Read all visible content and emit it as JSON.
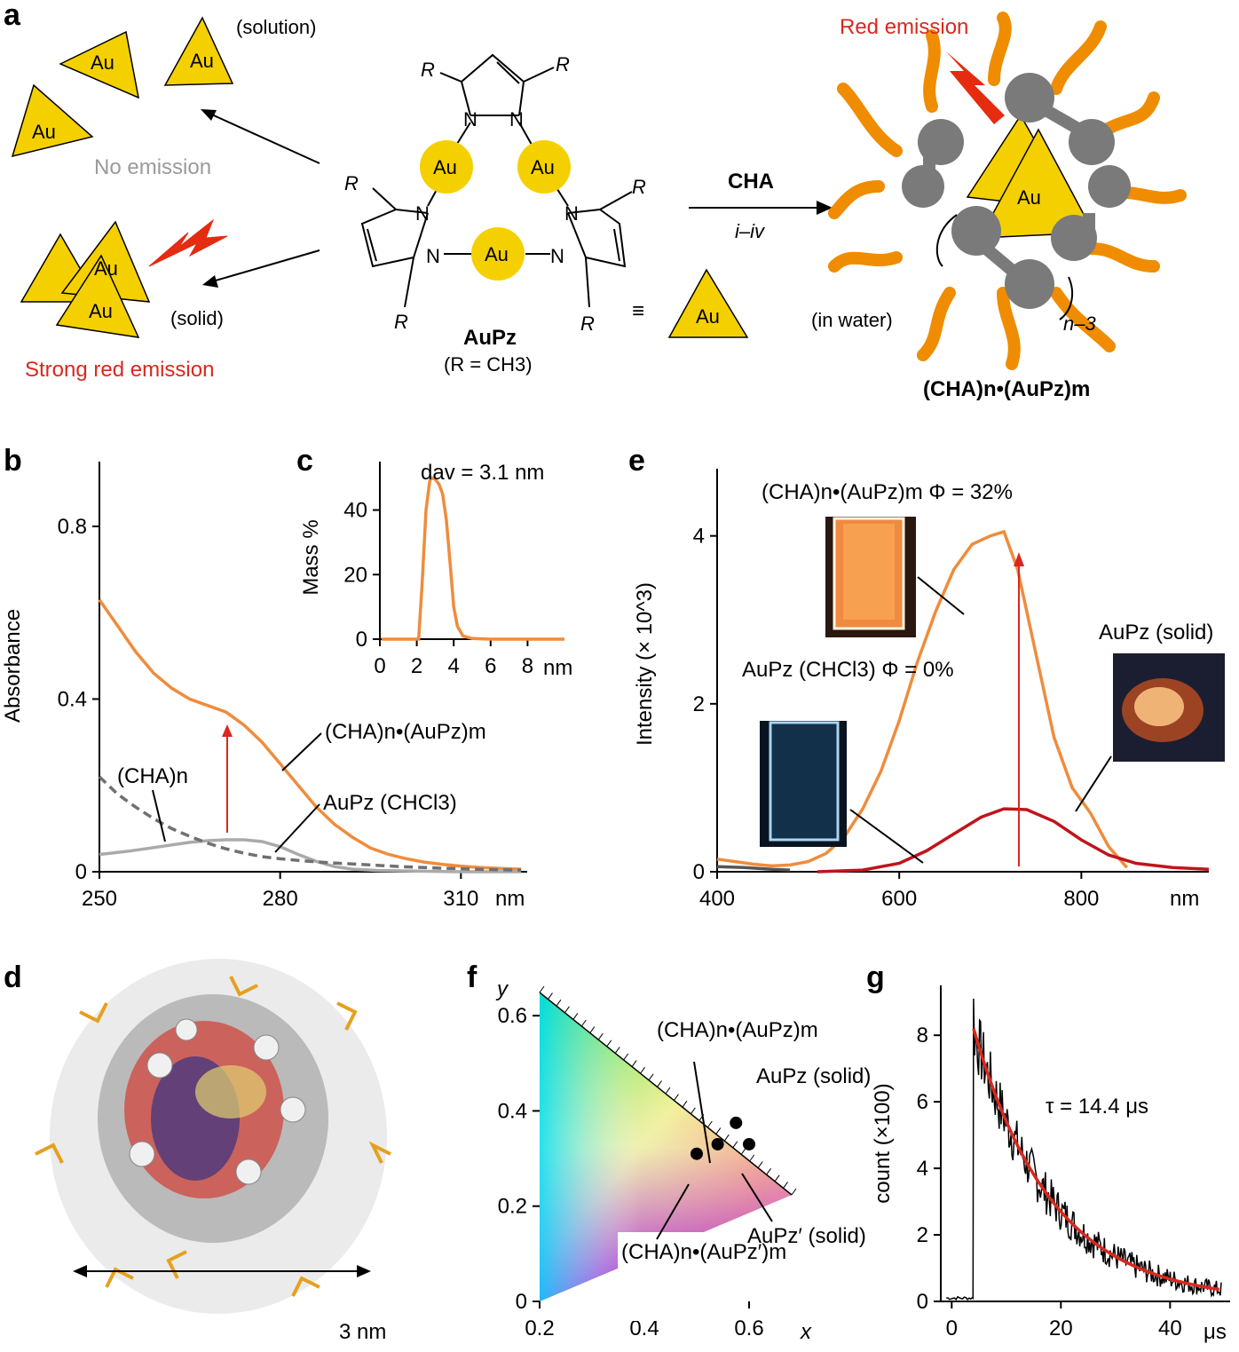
{
  "panel_labels": [
    "a",
    "b",
    "c",
    "d",
    "e",
    "f",
    "g"
  ],
  "panel_a": {
    "au": "Au",
    "solution": "(solution)",
    "solid": "(solid)",
    "in_water": "(in water)",
    "no_emission": "No emission",
    "strong_red_emission": "Strong red emission",
    "red_emission": "Red emission",
    "R": "R",
    "N": "N",
    "compound": "AuPz",
    "compound_def": "(R = CH3)",
    "reagent": "CHA",
    "steps": "i–iv",
    "equiv": "≡",
    "n_minus_3": "n–3",
    "product": "(CHA)n•(AuPz)m",
    "colors": {
      "gold": "#f5d000",
      "orange": "#ef8c00",
      "gray": "#7a7a7a",
      "red": "#d9281e"
    }
  },
  "chart_data": [
    {
      "panel": "b",
      "type": "line",
      "ylabel": "Absorbance",
      "xunit": "nm",
      "xlim": [
        250,
        321
      ],
      "ylim": [
        0,
        0.95
      ],
      "xticks": [
        250,
        280,
        310
      ],
      "yticks": [
        0,
        0.4,
        0.8
      ],
      "annotations": [
        "(CHA)n•(AuPz)m",
        "(CHA)n",
        "AuPz (CHCl3)"
      ],
      "series": [
        {
          "name": "(CHA)n•(AuPz)m",
          "color": "#ef8c3c",
          "style": "solid",
          "x": [
            250,
            253,
            256,
            259,
            262,
            265,
            268,
            271,
            274,
            277,
            280,
            283,
            286,
            289,
            292,
            295,
            298,
            301,
            304,
            307,
            310,
            313,
            316,
            320
          ],
          "y": [
            0.63,
            0.57,
            0.51,
            0.46,
            0.425,
            0.4,
            0.385,
            0.37,
            0.34,
            0.3,
            0.25,
            0.2,
            0.15,
            0.11,
            0.08,
            0.055,
            0.04,
            0.03,
            0.022,
            0.017,
            0.013,
            0.01,
            0.008,
            0.006
          ]
        },
        {
          "name": "(CHA)n",
          "color": "#aaaaaa",
          "style": "solid",
          "x": [
            250,
            255,
            260,
            265,
            268,
            271,
            274,
            277,
            280,
            283,
            286,
            289,
            292,
            296,
            300,
            305,
            310,
            320
          ],
          "y": [
            0.04,
            0.048,
            0.058,
            0.068,
            0.072,
            0.074,
            0.074,
            0.07,
            0.058,
            0.04,
            0.024,
            0.012,
            0.006,
            0.003,
            0.002,
            0.001,
            0.0,
            0.0
          ]
        },
        {
          "name": "AuPz (CHCl3)",
          "color": "#707070",
          "style": "dashed",
          "x": [
            250,
            253,
            256,
            259,
            262,
            265,
            268,
            271,
            274,
            277,
            280,
            284,
            288,
            292,
            296,
            300,
            305,
            310,
            315,
            320
          ],
          "y": [
            0.22,
            0.18,
            0.15,
            0.123,
            0.1,
            0.082,
            0.066,
            0.053,
            0.043,
            0.035,
            0.03,
            0.025,
            0.021,
            0.018,
            0.015,
            0.012,
            0.009,
            0.007,
            0.005,
            0.004
          ]
        }
      ]
    },
    {
      "panel": "c",
      "type": "line",
      "ylabel": "Mass %",
      "title": "dav = 3.1 nm",
      "xunit": "nm",
      "xlim": [
        0,
        10
      ],
      "ylim": [
        0,
        55
      ],
      "xticks": [
        0,
        2,
        4,
        6,
        8
      ],
      "yticks": [
        0,
        20,
        40
      ],
      "series": [
        {
          "name": "",
          "color": "#ef8c3c",
          "x": [
            0.1,
            2.1,
            2.3,
            2.5,
            2.7,
            2.8,
            3.0,
            3.2,
            3.4,
            3.6,
            3.8,
            4.0,
            4.2,
            4.5,
            5.0,
            6,
            8,
            10
          ],
          "y": [
            0,
            0,
            18,
            40,
            49,
            50,
            49.5,
            48,
            45,
            37,
            24,
            10,
            4,
            1,
            0.2,
            0,
            0,
            0
          ]
        }
      ]
    },
    {
      "panel": "e",
      "type": "line",
      "ylabel": "Intensity (× 10^3)",
      "xunit": "nm",
      "xlim": [
        400,
        940
      ],
      "ylim": [
        0,
        4.8
      ],
      "xticks": [
        400,
        600,
        800
      ],
      "yticks": [
        0,
        2,
        4
      ],
      "annotations": [
        "(CHA)n•(AuPz)m Φ = 32%",
        "AuPz (CHCl3) Φ = 0%",
        "AuPz (solid)"
      ],
      "series": [
        {
          "name": "(CHA)n•(AuPz)m",
          "color": "#ef8c3c",
          "x": [
            400,
            420,
            440,
            460,
            480,
            500,
            520,
            540,
            560,
            580,
            600,
            620,
            640,
            660,
            680,
            700,
            715,
            730,
            750,
            770,
            790,
            810,
            830,
            850
          ],
          "y": [
            0.15,
            0.12,
            0.09,
            0.07,
            0.08,
            0.12,
            0.22,
            0.42,
            0.75,
            1.2,
            1.8,
            2.5,
            3.1,
            3.6,
            3.9,
            4.0,
            4.05,
            3.6,
            2.6,
            1.6,
            1.0,
            0.7,
            0.3,
            0.05
          ]
        },
        {
          "name": "AuPz (solid)",
          "color": "#c0141c",
          "x": [
            510,
            560,
            600,
            630,
            660,
            690,
            715,
            740,
            770,
            800,
            830,
            860,
            900,
            940
          ],
          "y": [
            0.0,
            0.02,
            0.1,
            0.25,
            0.45,
            0.65,
            0.75,
            0.74,
            0.6,
            0.38,
            0.2,
            0.1,
            0.05,
            0.03
          ]
        },
        {
          "name": "AuPz (CHCl3)",
          "color": "#555555",
          "x": [
            400,
            430,
            460,
            480
          ],
          "y": [
            0.06,
            0.05,
            0.03,
            0.02
          ]
        }
      ]
    },
    {
      "panel": "f",
      "type": "scatter",
      "xlabel": "x",
      "ylabel": "y",
      "xlim": [
        0.2,
        0.8
      ],
      "ylim": [
        0,
        0.85
      ],
      "xticks": [
        0.2,
        0.4,
        0.6
      ],
      "yticks": [
        0,
        0.2,
        0.4,
        0.6
      ],
      "series": [
        {
          "name": "(CHA)n•(AuPz)m",
          "x": [
            0.54
          ],
          "y": [
            0.33
          ]
        },
        {
          "name": "AuPz (solid)",
          "x": [
            0.575
          ],
          "y": [
            0.375
          ]
        },
        {
          "name": "AuPz′ (solid)",
          "x": [
            0.6
          ],
          "y": [
            0.33
          ]
        },
        {
          "name": "(CHA)n•(AuPz′)m",
          "x": [
            0.5
          ],
          "y": [
            0.31
          ]
        }
      ]
    },
    {
      "panel": "g",
      "type": "line",
      "ylabel": "count (×100)",
      "title": "τ = 14.4 μs",
      "xunit": "μs",
      "xlim": [
        -2,
        51
      ],
      "ylim": [
        0,
        9.5
      ],
      "xticks": [
        0,
        20,
        40
      ],
      "yticks": [
        0,
        2,
        4,
        6,
        8
      ],
      "series": [
        {
          "name": "data",
          "color": "#000000"
        },
        {
          "name": "fit",
          "color": "#d9281e",
          "tau": 14.4,
          "t0": 4,
          "amplitude": 8.2
        }
      ]
    }
  ],
  "panel_d": {
    "scale_label": "3 nm"
  }
}
